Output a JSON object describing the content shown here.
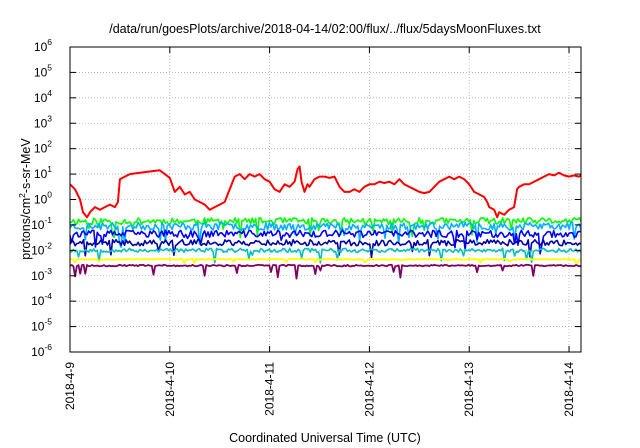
{
  "chart_data": {
    "type": "line",
    "title": "/data/run/goesPlots/archive/2018-04-14/02:00/flux/../flux/5daysMoonFluxes.txt",
    "xlabel": "Coordinated Universal Time (UTC)",
    "ylabel": {
      "base": "protons/cm",
      "sup": "2",
      "rest": "-s-sr-MeV"
    },
    "yscale": "log",
    "ylim": [
      1e-06,
      1000000.0
    ],
    "xlim_days": [
      0,
      5.12
    ],
    "grid": true,
    "legend": "none",
    "x_ticks": [
      {
        "day": 0,
        "label": "2018-4-9"
      },
      {
        "day": 1,
        "label": "2018-4-10"
      },
      {
        "day": 2,
        "label": "2018-4-11"
      },
      {
        "day": 3,
        "label": "2018-4-12"
      },
      {
        "day": 4,
        "label": "2018-4-13"
      },
      {
        "day": 5,
        "label": "2018-4-14"
      }
    ],
    "y_ticks": [
      {
        "value": -6,
        "label": "10",
        "exp": "-6"
      },
      {
        "value": -5,
        "label": "10",
        "exp": "-5"
      },
      {
        "value": -4,
        "label": "10",
        "exp": "-4"
      },
      {
        "value": -3,
        "label": "10",
        "exp": "-3"
      },
      {
        "value": -2,
        "label": "10",
        "exp": "-2"
      },
      {
        "value": -1,
        "label": "10",
        "exp": "-1"
      },
      {
        "value": 0,
        "label": "10",
        "exp": "0"
      },
      {
        "value": 1,
        "label": "10",
        "exp": "1"
      },
      {
        "value": 2,
        "label": "10",
        "exp": "2"
      },
      {
        "value": 3,
        "label": "10",
        "exp": "3"
      },
      {
        "value": 4,
        "label": "10",
        "exp": "4"
      },
      {
        "value": 5,
        "label": "10",
        "exp": "5"
      },
      {
        "value": 6,
        "label": "10",
        "exp": "6"
      }
    ],
    "series": [
      {
        "color": "#ff0000",
        "width": 2.0,
        "log10_flux": [
          [
            0.0,
            0.6
          ],
          [
            0.05,
            0.4
          ],
          [
            0.1,
            0.0
          ],
          [
            0.13,
            -0.5
          ],
          [
            0.17,
            -0.7
          ],
          [
            0.2,
            -0.5
          ],
          [
            0.25,
            -0.3
          ],
          [
            0.3,
            -0.4
          ],
          [
            0.35,
            -0.3
          ],
          [
            0.4,
            -0.2
          ],
          [
            0.45,
            -0.3
          ],
          [
            0.48,
            -0.1
          ],
          [
            0.5,
            0.8
          ],
          [
            0.55,
            0.9
          ],
          [
            0.6,
            1.0
          ],
          [
            0.7,
            1.05
          ],
          [
            0.8,
            1.1
          ],
          [
            0.9,
            1.15
          ],
          [
            0.95,
            1.0
          ],
          [
            1.0,
            0.85
          ],
          [
            1.05,
            0.3
          ],
          [
            1.1,
            0.5
          ],
          [
            1.15,
            0.2
          ],
          [
            1.2,
            0.3
          ],
          [
            1.25,
            0.0
          ],
          [
            1.3,
            -0.1
          ],
          [
            1.35,
            -0.2
          ],
          [
            1.4,
            -0.4
          ],
          [
            1.45,
            -0.3
          ],
          [
            1.5,
            -0.2
          ],
          [
            1.55,
            -0.1
          ],
          [
            1.6,
            0.4
          ],
          [
            1.65,
            0.9
          ],
          [
            1.7,
            1.0
          ],
          [
            1.75,
            0.8
          ],
          [
            1.8,
            1.0
          ],
          [
            1.85,
            0.9
          ],
          [
            1.9,
            1.0
          ],
          [
            1.95,
            0.8
          ],
          [
            2.0,
            0.7
          ],
          [
            2.05,
            0.4
          ],
          [
            2.1,
            0.3
          ],
          [
            2.15,
            0.6
          ],
          [
            2.2,
            0.5
          ],
          [
            2.25,
            0.7
          ],
          [
            2.28,
            1.2
          ],
          [
            2.3,
            1.3
          ],
          [
            2.32,
            0.7
          ],
          [
            2.35,
            0.3
          ],
          [
            2.38,
            0.6
          ],
          [
            2.4,
            0.5
          ],
          [
            2.45,
            0.8
          ],
          [
            2.5,
            0.9
          ],
          [
            2.55,
            0.9
          ],
          [
            2.6,
            0.85
          ],
          [
            2.65,
            0.9
          ],
          [
            2.7,
            0.5
          ],
          [
            2.75,
            0.3
          ],
          [
            2.8,
            0.3
          ],
          [
            2.85,
            0.4
          ],
          [
            2.9,
            0.3
          ],
          [
            2.95,
            0.5
          ],
          [
            3.0,
            0.6
          ],
          [
            3.05,
            0.6
          ],
          [
            3.1,
            0.7
          ],
          [
            3.15,
            0.65
          ],
          [
            3.2,
            0.7
          ],
          [
            3.25,
            0.6
          ],
          [
            3.3,
            0.8
          ],
          [
            3.35,
            0.6
          ],
          [
            3.4,
            0.5
          ],
          [
            3.45,
            0.4
          ],
          [
            3.5,
            0.3
          ],
          [
            3.55,
            0.25
          ],
          [
            3.6,
            0.3
          ],
          [
            3.65,
            0.5
          ],
          [
            3.7,
            0.7
          ],
          [
            3.75,
            0.8
          ],
          [
            3.8,
            0.9
          ],
          [
            3.85,
            0.8
          ],
          [
            3.9,
            0.9
          ],
          [
            3.95,
            0.8
          ],
          [
            4.0,
            0.6
          ],
          [
            4.05,
            0.3
          ],
          [
            4.1,
            0.2
          ],
          [
            4.15,
            0.1
          ],
          [
            4.18,
            -0.1
          ],
          [
            4.2,
            -0.3
          ],
          [
            4.25,
            -0.4
          ],
          [
            4.28,
            -0.7
          ],
          [
            4.3,
            -0.5
          ],
          [
            4.35,
            -0.6
          ],
          [
            4.4,
            -0.4
          ],
          [
            4.45,
            -0.3
          ],
          [
            4.48,
            0.4
          ],
          [
            4.5,
            0.5
          ],
          [
            4.55,
            0.6
          ],
          [
            4.6,
            0.6
          ],
          [
            4.65,
            0.7
          ],
          [
            4.7,
            0.8
          ],
          [
            4.75,
            0.9
          ],
          [
            4.8,
            1.0
          ],
          [
            4.85,
            0.95
          ],
          [
            4.9,
            1.05
          ],
          [
            4.95,
            0.95
          ],
          [
            5.0,
            0.9
          ],
          [
            5.05,
            0.95
          ],
          [
            5.1,
            0.9
          ],
          [
            5.12,
            0.95
          ]
        ]
      },
      {
        "color": "#00ff00",
        "width": 1.6,
        "log10_flux": [
          [
            0,
            -0.85
          ],
          [
            5.12,
            -0.85
          ]
        ],
        "noise": 0.13,
        "dips": 0.45,
        "seed": 11
      },
      {
        "color": "#00b0ff",
        "width": 1.6,
        "log10_flux": [
          [
            0,
            -1.05
          ],
          [
            5.12,
            -1.05
          ]
        ],
        "noise": 0.15,
        "dips": 0.5,
        "seed": 23
      },
      {
        "color": "#0000ff",
        "width": 1.6,
        "log10_flux": [
          [
            0,
            -1.35
          ],
          [
            5.12,
            -1.35
          ]
        ],
        "noise": 0.14,
        "dips": 0.45,
        "seed": 37
      },
      {
        "color": "#0000aa",
        "width": 1.6,
        "log10_flux": [
          [
            0,
            -1.7
          ],
          [
            5.12,
            -1.7
          ]
        ],
        "noise": 0.12,
        "dips": 0.4,
        "seed": 41
      },
      {
        "color": "#00c0c0",
        "width": 1.6,
        "log10_flux": [
          [
            0,
            -2.0
          ],
          [
            5.12,
            -2.0
          ]
        ],
        "noise": 0.08,
        "dips": 0.35,
        "seed": 53
      },
      {
        "color": "#ffff00",
        "width": 1.8,
        "log10_flux": [
          [
            0,
            -2.35
          ],
          [
            5.12,
            -2.35
          ]
        ],
        "noise": 0.02,
        "dips": 0.1,
        "seed": 67
      },
      {
        "color": "#800060",
        "width": 1.8,
        "log10_flux": [
          [
            0,
            -2.6
          ],
          [
            5.12,
            -2.6
          ]
        ],
        "noise": 0.03,
        "dips": 0.35,
        "seed": 79
      }
    ]
  }
}
